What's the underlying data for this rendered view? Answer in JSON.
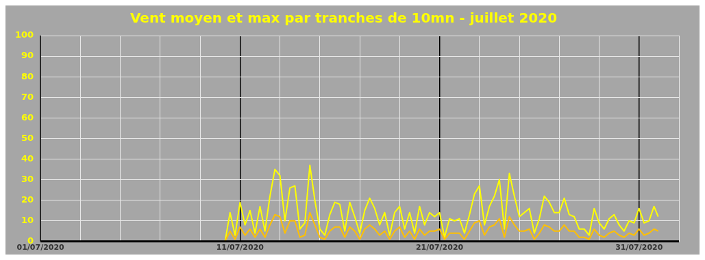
{
  "chart_data": {
    "type": "line",
    "title": "Vent moyen et max par tranches de 10mn - juillet 2020",
    "x": [
      "2020-07-10T06:00",
      "2020-07-10T12:00",
      "2020-07-10T18:00",
      "2020-07-11T00:00",
      "2020-07-11T06:00",
      "2020-07-11T12:00",
      "2020-07-11T18:00",
      "2020-07-12T00:00",
      "2020-07-12T06:00",
      "2020-07-12T12:00",
      "2020-07-12T18:00",
      "2020-07-13T00:00",
      "2020-07-13T06:00",
      "2020-07-13T12:00",
      "2020-07-13T18:00",
      "2020-07-14T00:00",
      "2020-07-14T06:00",
      "2020-07-14T12:00",
      "2020-07-14T18:00",
      "2020-07-15T00:00",
      "2020-07-15T06:00",
      "2020-07-15T12:00",
      "2020-07-15T18:00",
      "2020-07-16T00:00",
      "2020-07-16T06:00",
      "2020-07-16T12:00",
      "2020-07-16T18:00",
      "2020-07-17T00:00",
      "2020-07-17T06:00",
      "2020-07-17T12:00",
      "2020-07-17T18:00",
      "2020-07-18T00:00",
      "2020-07-18T06:00",
      "2020-07-18T12:00",
      "2020-07-18T18:00",
      "2020-07-19T00:00",
      "2020-07-19T06:00",
      "2020-07-19T12:00",
      "2020-07-19T18:00",
      "2020-07-20T00:00",
      "2020-07-20T06:00",
      "2020-07-20T12:00",
      "2020-07-20T18:00",
      "2020-07-21T00:00",
      "2020-07-21T06:00",
      "2020-07-21T12:00",
      "2020-07-21T18:00",
      "2020-07-22T00:00",
      "2020-07-22T06:00",
      "2020-07-22T12:00",
      "2020-07-22T18:00",
      "2020-07-23T00:00",
      "2020-07-23T06:00",
      "2020-07-23T12:00",
      "2020-07-23T18:00",
      "2020-07-24T00:00",
      "2020-07-24T06:00",
      "2020-07-24T12:00",
      "2020-07-24T18:00",
      "2020-07-25T00:00",
      "2020-07-25T06:00",
      "2020-07-25T12:00",
      "2020-07-25T18:00",
      "2020-07-26T00:00",
      "2020-07-26T06:00",
      "2020-07-26T12:00",
      "2020-07-26T18:00",
      "2020-07-27T00:00",
      "2020-07-27T06:00",
      "2020-07-27T12:00",
      "2020-07-27T18:00",
      "2020-07-28T00:00",
      "2020-07-28T06:00",
      "2020-07-28T12:00",
      "2020-07-28T18:00",
      "2020-07-29T00:00",
      "2020-07-29T06:00",
      "2020-07-29T12:00",
      "2020-07-29T18:00",
      "2020-07-30T00:00",
      "2020-07-30T06:00",
      "2020-07-30T12:00",
      "2020-07-30T18:00",
      "2020-07-31T00:00",
      "2020-07-31T06:00",
      "2020-07-31T12:00",
      "2020-07-31T18:00",
      "2020-07-31T23:00"
    ],
    "series": [
      {
        "color": "#ffff00",
        "values": [
          0,
          14,
          3,
          19,
          8,
          15,
          4,
          17,
          5,
          22,
          35,
          32,
          10,
          26,
          27,
          6,
          9,
          37,
          20,
          6,
          3,
          13,
          19,
          18,
          5,
          19,
          12,
          4,
          15,
          21,
          16,
          8,
          14,
          3,
          14,
          17,
          6,
          14,
          4,
          17,
          8,
          14,
          12,
          14,
          2,
          11,
          10,
          11,
          4,
          13,
          23,
          27,
          8,
          17,
          22,
          30,
          6,
          33,
          22,
          12,
          14,
          16,
          4,
          11,
          22,
          19,
          14,
          14,
          21,
          13,
          12,
          6,
          6,
          3,
          16,
          9,
          6,
          11,
          13,
          8,
          5,
          10,
          9,
          16,
          9,
          10,
          17,
          12
        ]
      },
      {
        "color": "#ffc000",
        "values": [
          0,
          5,
          1,
          7,
          3,
          6,
          2,
          6,
          2,
          8,
          13,
          12,
          4,
          10,
          10,
          2,
          3,
          14,
          8,
          2,
          1,
          5,
          7,
          7,
          2,
          7,
          5,
          1,
          6,
          8,
          6,
          3,
          5,
          1,
          5,
          7,
          2,
          5,
          1,
          6,
          3,
          5,
          5,
          6,
          1,
          4,
          4,
          4,
          1,
          5,
          9,
          10,
          3,
          7,
          8,
          11,
          2,
          12,
          8,
          5,
          5,
          6,
          1,
          4,
          8,
          7,
          5,
          5,
          8,
          5,
          5,
          2,
          2,
          1,
          6,
          3,
          2,
          4,
          5,
          3,
          2,
          4,
          3,
          6,
          3,
          4,
          6,
          5
        ]
      }
    ],
    "xlim": [
      "2020-07-01",
      "2020-08-02"
    ],
    "xticks": [
      {
        "value": "2020-07-01",
        "label": "01/07/2020"
      },
      {
        "value": "2020-07-03",
        "label": null
      },
      {
        "value": "2020-07-05",
        "label": null
      },
      {
        "value": "2020-07-07",
        "label": null
      },
      {
        "value": "2020-07-09",
        "label": null
      },
      {
        "value": "2020-07-11",
        "label": "11/07/2020"
      },
      {
        "value": "2020-07-13",
        "label": null
      },
      {
        "value": "2020-07-15",
        "label": null
      },
      {
        "value": "2020-07-17",
        "label": null
      },
      {
        "value": "2020-07-19",
        "label": null
      },
      {
        "value": "2020-07-21",
        "label": "21/07/2020"
      },
      {
        "value": "2020-07-23",
        "label": null
      },
      {
        "value": "2020-07-25",
        "label": null
      },
      {
        "value": "2020-07-27",
        "label": null
      },
      {
        "value": "2020-07-29",
        "label": null
      },
      {
        "value": "2020-07-31",
        "label": "31/07/2020"
      },
      {
        "value": "2020-08-02",
        "label": null
      }
    ],
    "ylim": [
      0,
      100
    ],
    "yticks": [
      0,
      10,
      20,
      30,
      40,
      50,
      60,
      70,
      80,
      90,
      100
    ],
    "grid": true,
    "legend": false,
    "marker": "none",
    "line_style": "solid"
  }
}
